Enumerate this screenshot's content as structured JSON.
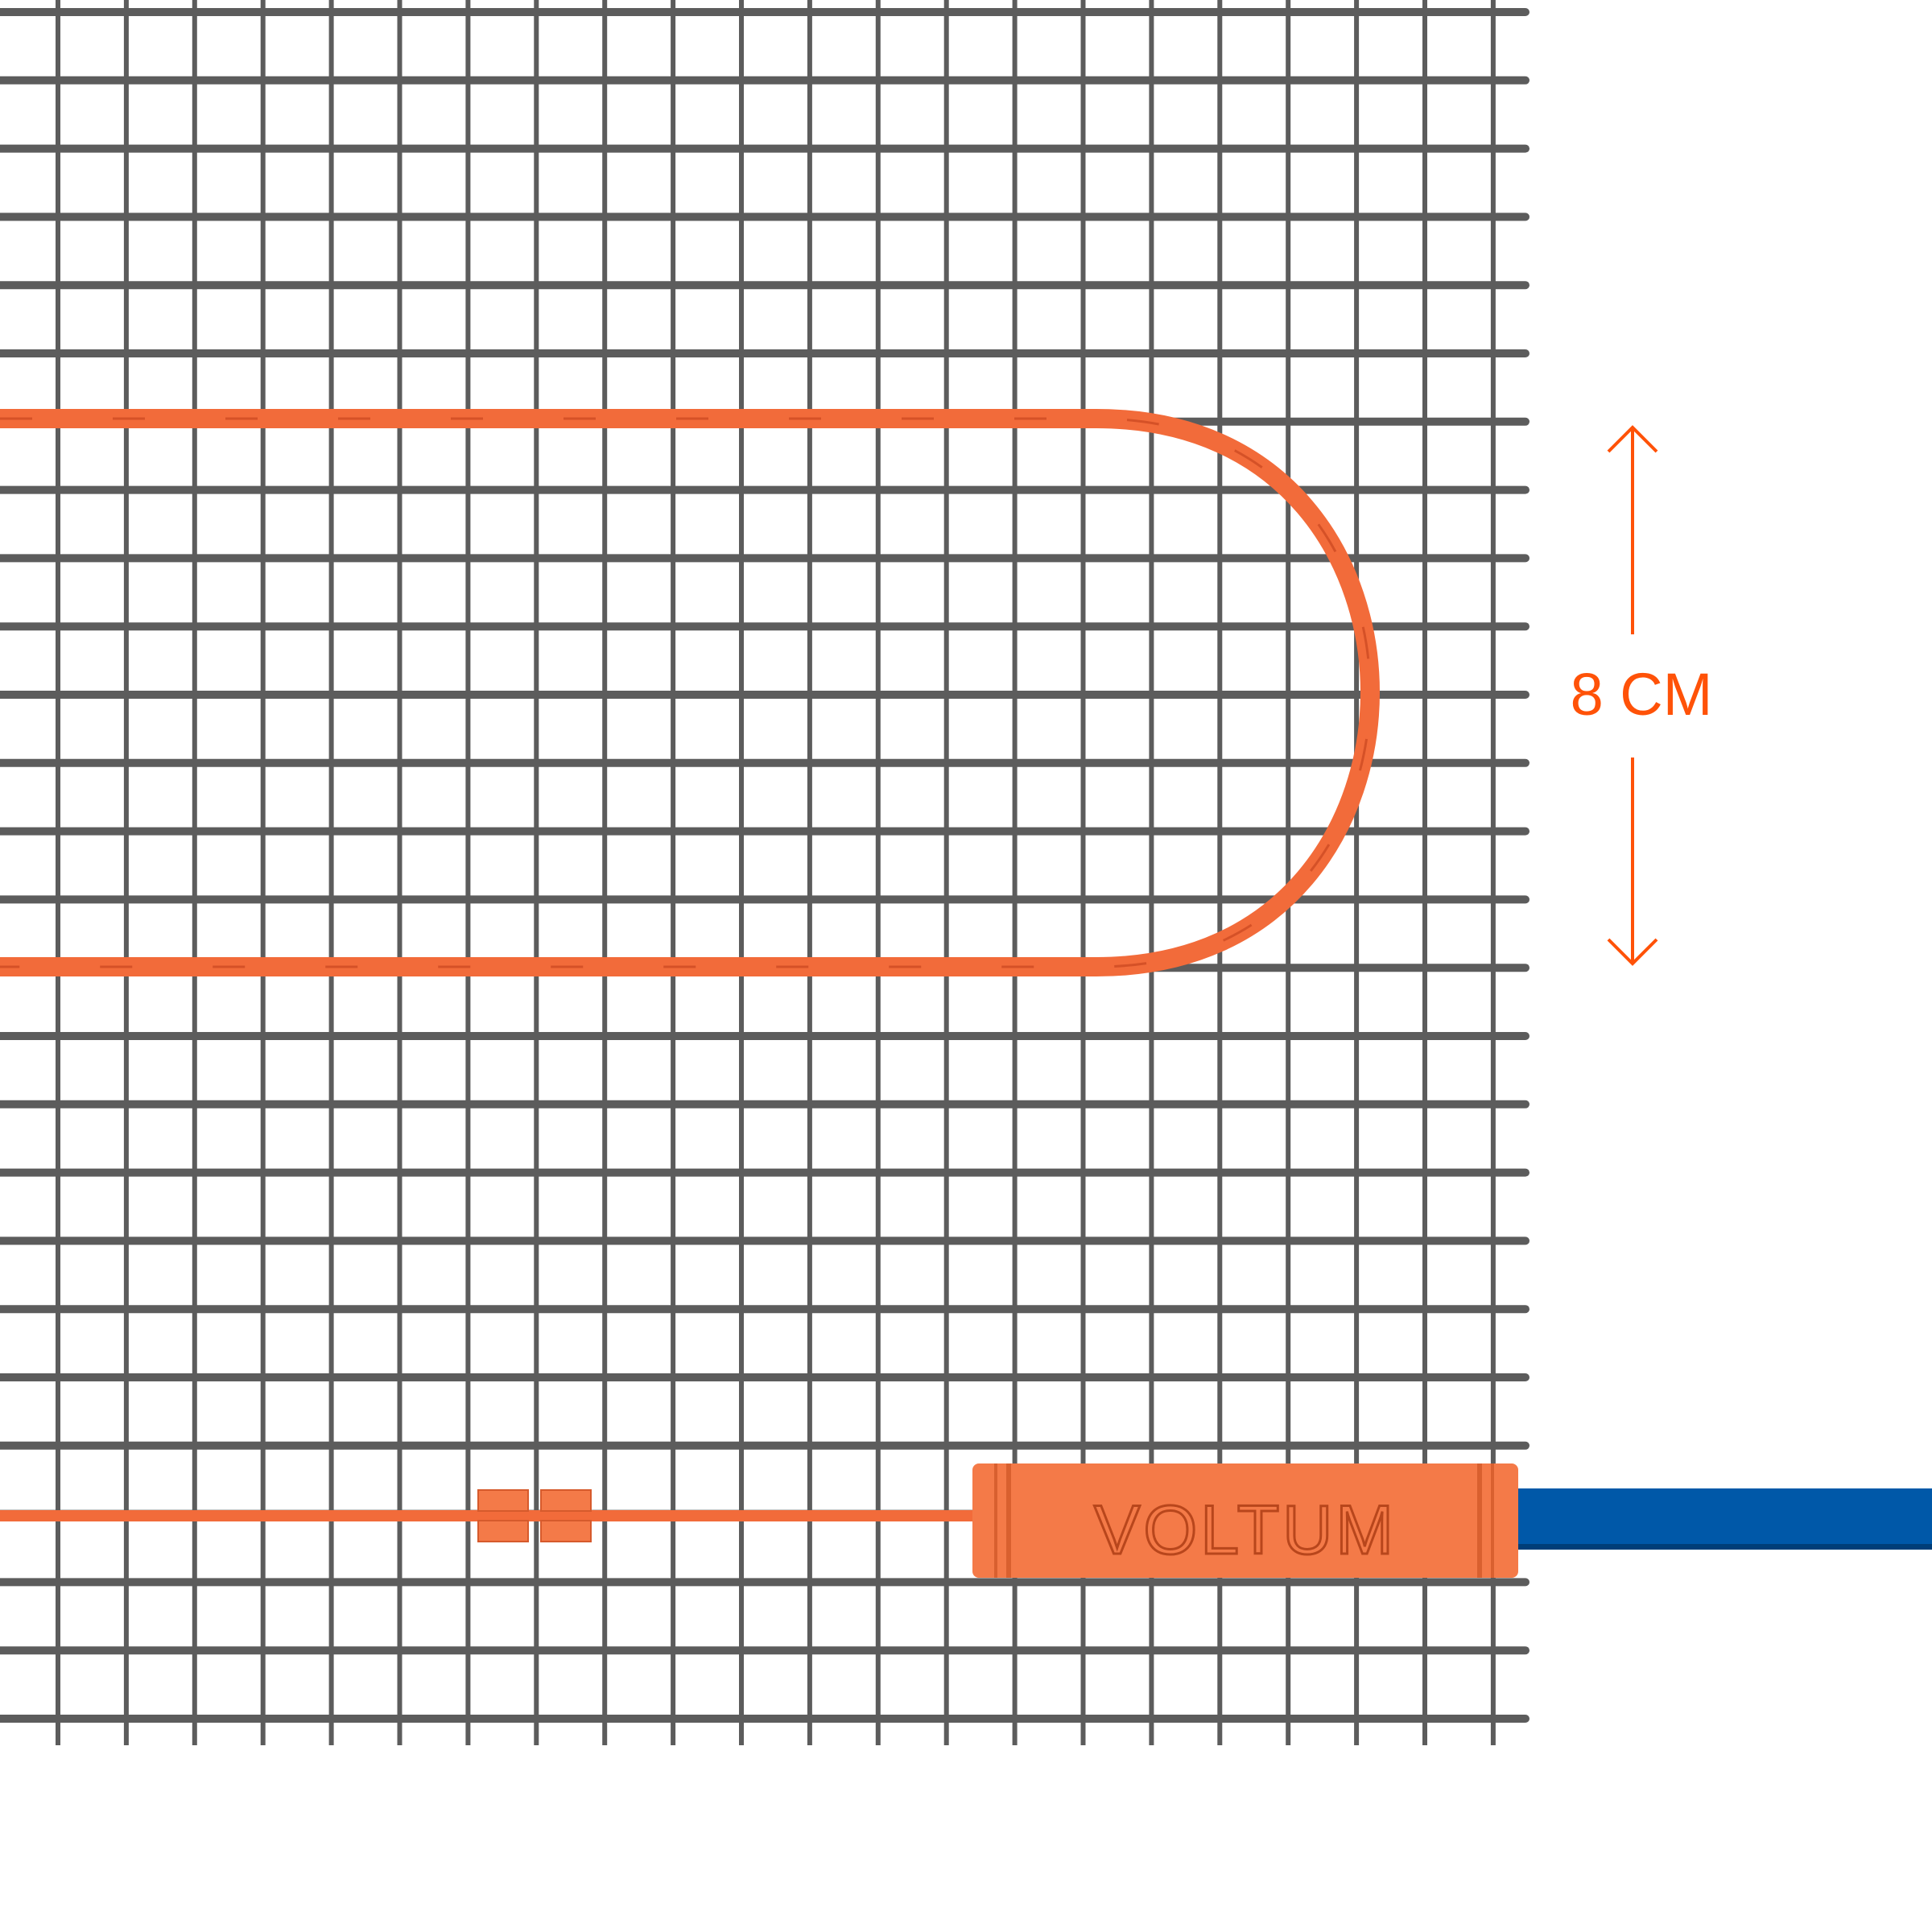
{
  "dimension_label": "8 CM",
  "brand_logo": "VOLTUM",
  "colors": {
    "cable": "#f26b3a",
    "connector": "#f47a48",
    "annotation": "#ff5208",
    "power_cable": "#0058a8",
    "mesh": "#5c5c5c"
  }
}
